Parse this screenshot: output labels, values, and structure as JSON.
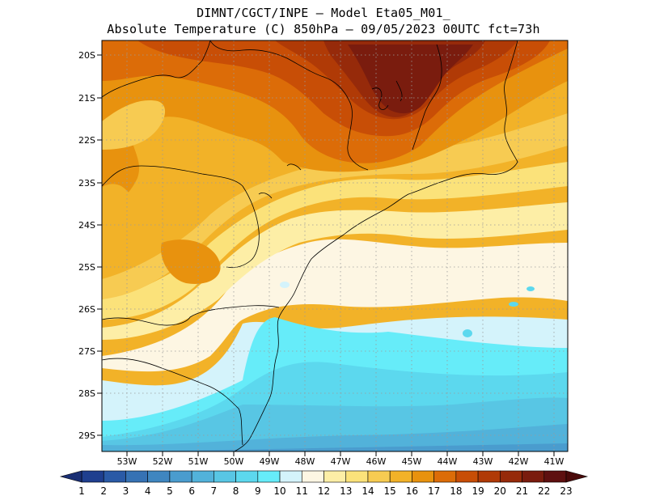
{
  "title_line1": "DIMNT/CGCT/INPE —  Model Eta05_M01_",
  "title_line2": "Absolute Temperature (C) 850hPa —  09/05/2023 00UTC fct=73h",
  "lat_labels": [
    "20S",
    "21S",
    "22S",
    "23S",
    "24S",
    "25S",
    "26S",
    "27S",
    "28S",
    "29S"
  ],
  "lon_labels": [
    "53W",
    "52W",
    "51W",
    "50W",
    "49W",
    "48W",
    "47W",
    "46W",
    "45W",
    "44W",
    "43W",
    "42W",
    "41W"
  ],
  "colorbar": {
    "labels": [
      "1",
      "2",
      "3",
      "4",
      "5",
      "6",
      "7",
      "8",
      "9",
      "10",
      "11",
      "12",
      "13",
      "14",
      "15",
      "16",
      "17",
      "18",
      "19",
      "20",
      "21",
      "22",
      "23"
    ],
    "colors": [
      "#1f3f8f",
      "#2a5aa6",
      "#3672b4",
      "#3f86c0",
      "#4a9cce",
      "#52b2da",
      "#58c6e4",
      "#5cd8ee",
      "#66ecf9",
      "#d4f3fb",
      "#fdf6e3",
      "#fdeea6",
      "#fbe27a",
      "#f7cb52",
      "#f2b228",
      "#e8920e",
      "#dc6c08",
      "#c84e06",
      "#b03a06",
      "#962a0a",
      "#7a1c0e",
      "#5e1010"
    ]
  },
  "map_icons": [
    "coastline-icon",
    "state-border-icon",
    "grid-lines-icon"
  ]
}
